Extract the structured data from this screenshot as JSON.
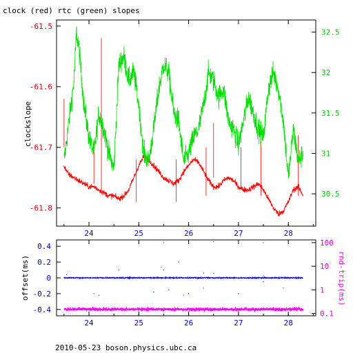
{
  "title": "clock (red) rtc (green) slopes",
  "footer": "2010-05-23 boson.physics.ubc.ca",
  "colors": {
    "red": "#ff0000",
    "green": "#00e000",
    "blue": "#0000ee",
    "magenta": "#ff00ff",
    "axis_red": "#cc0000",
    "axis_green": "#00cc00",
    "axis_blue": "#0000cc",
    "axis_magenta": "#dd00dd"
  },
  "chart_data": [
    {
      "type": "line",
      "title": "clock (red) rtc (green) slopes",
      "xlabel": "",
      "ylabel": "clockslope",
      "xlim": [
        23.35,
        28.55
      ],
      "ylim": [
        -61.83,
        -61.49
      ],
      "y2lim": [
        30.1,
        32.65
      ],
      "x_ticks": [
        24,
        25,
        26,
        27,
        28
      ],
      "y_ticks": [
        -61.5,
        -61.6,
        -61.7,
        -61.8
      ],
      "y2_ticks": [
        30.5,
        31,
        31.5,
        32,
        32.5
      ],
      "series": [
        {
          "name": "clock",
          "axis": "left",
          "color": "#ff0000",
          "x": [
            23.5,
            23.55,
            23.6,
            23.7,
            23.8,
            23.9,
            24.0,
            24.1,
            24.2,
            24.3,
            24.4,
            24.5,
            24.6,
            24.7,
            24.8,
            24.9,
            25.0,
            25.1,
            25.2,
            25.3,
            25.4,
            25.5,
            25.6,
            25.7,
            25.8,
            25.9,
            26.0,
            26.1,
            26.2,
            26.3,
            26.4,
            26.5,
            26.6,
            26.7,
            26.8,
            26.9,
            27.0,
            27.1,
            27.2,
            27.3,
            27.4,
            27.5,
            27.6,
            27.7,
            27.8,
            27.9,
            28.0,
            28.1,
            28.2,
            28.3
          ],
          "y": [
            -61.73,
            -61.74,
            -61.745,
            -61.75,
            -61.755,
            -61.76,
            -61.765,
            -61.765,
            -61.77,
            -61.775,
            -61.78,
            -61.78,
            -61.785,
            -61.78,
            -61.77,
            -61.75,
            -61.73,
            -61.715,
            -61.72,
            -61.73,
            -61.74,
            -61.75,
            -61.755,
            -61.76,
            -61.755,
            -61.74,
            -61.73,
            -61.72,
            -61.725,
            -61.74,
            -61.755,
            -61.765,
            -61.765,
            -61.755,
            -61.75,
            -61.755,
            -61.765,
            -61.77,
            -61.77,
            -61.765,
            -61.76,
            -61.77,
            -61.785,
            -61.8,
            -61.81,
            -61.805,
            -61.79,
            -61.77,
            -61.765,
            -61.78
          ]
        },
        {
          "name": "rtc",
          "axis": "right",
          "color": "#00e000",
          "x": [
            23.5,
            23.6,
            23.7,
            23.75,
            23.8,
            23.9,
            24.0,
            24.1,
            24.2,
            24.3,
            24.4,
            24.5,
            24.6,
            24.7,
            24.8,
            24.9,
            25.0,
            25.1,
            25.2,
            25.3,
            25.4,
            25.5,
            25.6,
            25.7,
            25.8,
            25.9,
            26.0,
            26.1,
            26.2,
            26.3,
            26.4,
            26.5,
            26.6,
            26.7,
            26.8,
            26.9,
            27.0,
            27.1,
            27.2,
            27.3,
            27.4,
            27.5,
            27.6,
            27.7,
            27.8,
            27.9,
            28.0,
            28.1,
            28.2,
            28.3
          ],
          "y": [
            30.9,
            31.4,
            31.9,
            32.5,
            32.3,
            31.6,
            31.2,
            31.0,
            31.5,
            31.3,
            31.0,
            30.8,
            32.1,
            32.2,
            31.9,
            32.0,
            31.6,
            31.0,
            30.9,
            31.3,
            31.8,
            32.1,
            32.0,
            31.5,
            31.4,
            30.9,
            31.0,
            31.2,
            31.3,
            31.6,
            32.0,
            31.9,
            31.7,
            31.8,
            31.4,
            31.3,
            31.1,
            31.4,
            31.7,
            31.5,
            31.3,
            31.2,
            31.8,
            32.0,
            31.8,
            31.4,
            30.7,
            31.3,
            30.9,
            31.0
          ]
        }
      ]
    },
    {
      "type": "scatter",
      "xlabel": "",
      "ylabel": "offset(ms)",
      "y2label": "rnd-trip(ms)",
      "xlim": [
        23.35,
        28.55
      ],
      "ylim": [
        -0.48,
        0.48
      ],
      "y2lim_log": [
        0.08,
        130
      ],
      "x_ticks": [
        24,
        25,
        26,
        27,
        28
      ],
      "y_ticks": [
        0.4,
        0.2,
        0,
        -0.2,
        -0.4
      ],
      "y2_ticks": [
        100,
        10,
        1,
        0.1
      ],
      "series": [
        {
          "name": "offset",
          "axis": "left",
          "color": "#0000ee",
          "x": [
            23.5,
            28.3
          ],
          "y": [
            0.0,
            0.0
          ]
        },
        {
          "name": "rnd-trip",
          "axis": "right",
          "color": "#ff00ff",
          "x": [
            23.5,
            28.3
          ],
          "y": [
            0.15,
            0.15
          ]
        }
      ]
    }
  ]
}
